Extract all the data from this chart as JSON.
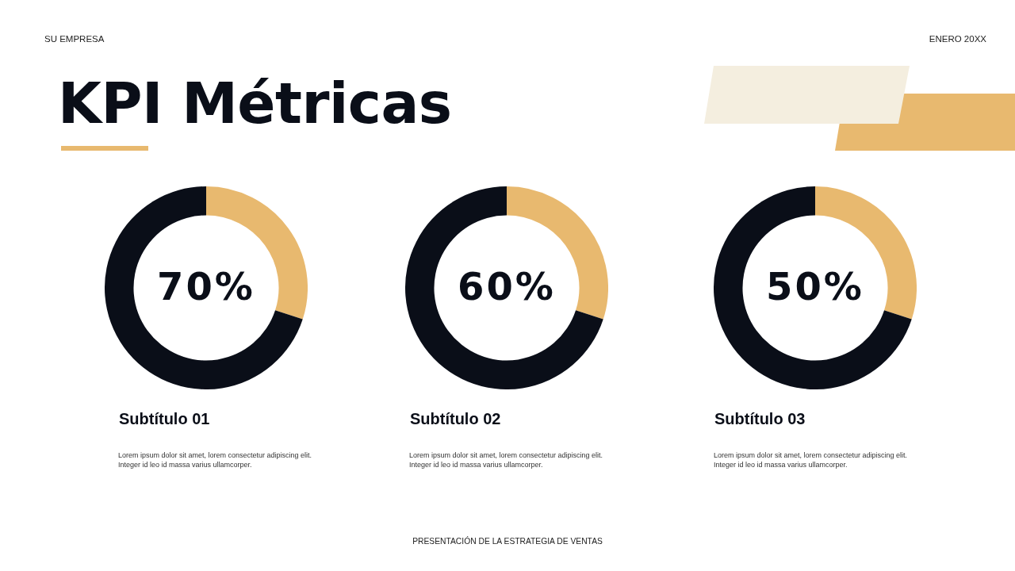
{
  "chart_data": [
    {
      "type": "other",
      "title": "KPI Métricas",
      "annotations": [
        "SU EMPRESA",
        "ENERO 20XX",
        "PRESENTACIÓN DE LA ESTRATEGIA DE VENTAS"
      ]
    },
    {
      "type": "donut",
      "title": "Subtítulo 01",
      "categories": [
        null,
        null
      ],
      "values": [
        30,
        70
      ],
      "colors": [
        "#e8b96f",
        "#0a0e18"
      ],
      "annotations": [
        "70%",
        "Lorem ipsum dolor sit amet, lorem consectetur adipiscing elit. Integer id leo id massa varius ullamcorper."
      ]
    },
    {
      "type": "donut",
      "title": "Subtítulo 02",
      "categories": [
        null,
        null
      ],
      "values": [
        30,
        70
      ],
      "colors": [
        "#e8b96f",
        "#0a0e18"
      ],
      "annotations": [
        "60%",
        "Lorem ipsum dolor sit amet, lorem consectetur adipiscing elit. Integer id leo id massa varius ullamcorper."
      ]
    },
    {
      "type": "donut",
      "title": "Subtítulo 03",
      "categories": [
        null,
        null
      ],
      "values": [
        30,
        70
      ],
      "colors": [
        "#e8b96f",
        "#0a0e18"
      ],
      "annotations": [
        "50%",
        "Lorem ipsum dolor sit amet, lorem consectetur adipiscing elit. Integer id leo id massa varius ullamcorper."
      ]
    }
  ]
}
